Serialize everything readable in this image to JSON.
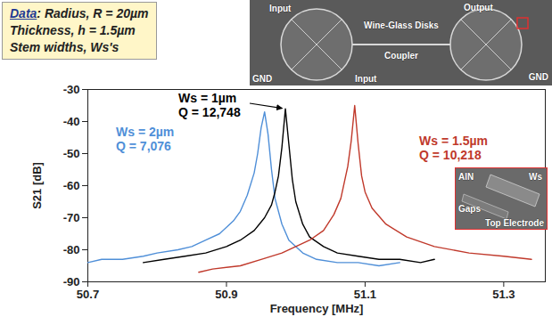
{
  "chart_data": {
    "type": "line",
    "xlabel": "Frequency [MHz]",
    "ylabel": "S21 [dB]",
    "xlim": [
      50.7,
      51.36
    ],
    "ylim": [
      -90,
      -30
    ],
    "xticks": [
      50.7,
      50.9,
      51.1,
      51.3
    ],
    "yticks": [
      -90,
      -80,
      -70,
      -60,
      -50,
      -40,
      -30
    ],
    "grid": false,
    "series": [
      {
        "name": "Ws = 2µm",
        "label": "Q = 7,076",
        "color": "#4f8fd8",
        "x": [
          50.7,
          50.72,
          50.75,
          50.78,
          50.8,
          50.83,
          50.85,
          50.87,
          50.89,
          50.91,
          50.92,
          50.93,
          50.94,
          50.945,
          50.95,
          50.955,
          50.96,
          50.965,
          50.97,
          50.98,
          50.99,
          51.01,
          51.03,
          51.06,
          51.09,
          51.12,
          51.15
        ],
        "values": [
          -84,
          -83,
          -83,
          -82,
          -81,
          -80,
          -79,
          -77,
          -75,
          -71,
          -68,
          -63,
          -56,
          -50,
          -42,
          -37,
          -44,
          -55,
          -64,
          -72,
          -77,
          -81,
          -83,
          -84,
          -84,
          -85,
          -84
        ]
      },
      {
        "name": "Ws = 1µm",
        "label": "Q = 12,748",
        "color": "#000000",
        "x": [
          50.78,
          50.81,
          50.84,
          50.87,
          50.9,
          50.92,
          50.94,
          50.955,
          50.965,
          50.97,
          50.975,
          50.98,
          50.985,
          50.99,
          50.995,
          51.0,
          51.01,
          51.02,
          51.04,
          51.06,
          51.09,
          51.12,
          51.15,
          51.18,
          51.2
        ],
        "values": [
          -84,
          -83,
          -82,
          -81,
          -79,
          -77,
          -74,
          -70,
          -66,
          -62,
          -57,
          -48,
          -36,
          -47,
          -58,
          -65,
          -72,
          -76,
          -79,
          -81,
          -82,
          -83,
          -83,
          -84,
          -83
        ]
      },
      {
        "name": "Ws = 1.5µm",
        "label": "Q = 10,218",
        "color": "#c0392b",
        "x": [
          50.86,
          50.88,
          50.92,
          50.95,
          50.98,
          51.0,
          51.02,
          51.04,
          51.055,
          51.065,
          51.075,
          51.08,
          51.085,
          51.09,
          51.095,
          51.1,
          51.11,
          51.13,
          51.16,
          51.2,
          51.25,
          51.3,
          51.34
        ],
        "values": [
          -87,
          -86,
          -85,
          -83,
          -81,
          -79,
          -77,
          -74,
          -69,
          -64,
          -54,
          -46,
          -35,
          -47,
          -57,
          -62,
          -67,
          -72,
          -76,
          -79,
          -81,
          -82,
          -83
        ]
      }
    ]
  },
  "info_box": {
    "heading": "Data",
    "lines": [
      ": Radius, R = 20µm",
      "Thickness, h = 1.5µm",
      "Stem widths, Ws's"
    ]
  },
  "micrograph": {
    "labels": {
      "input_top": "Input",
      "output": "Output",
      "gnd_right": "GND",
      "wine_glass": "Wine-Glass Disks",
      "coupler": "Coupler",
      "input_bottom": "Input",
      "gnd_left": "GND"
    },
    "inset_labels": {
      "aln": "AlN",
      "gaps": "Gaps",
      "ws": "Ws",
      "electrode": "Top Electrode"
    }
  }
}
